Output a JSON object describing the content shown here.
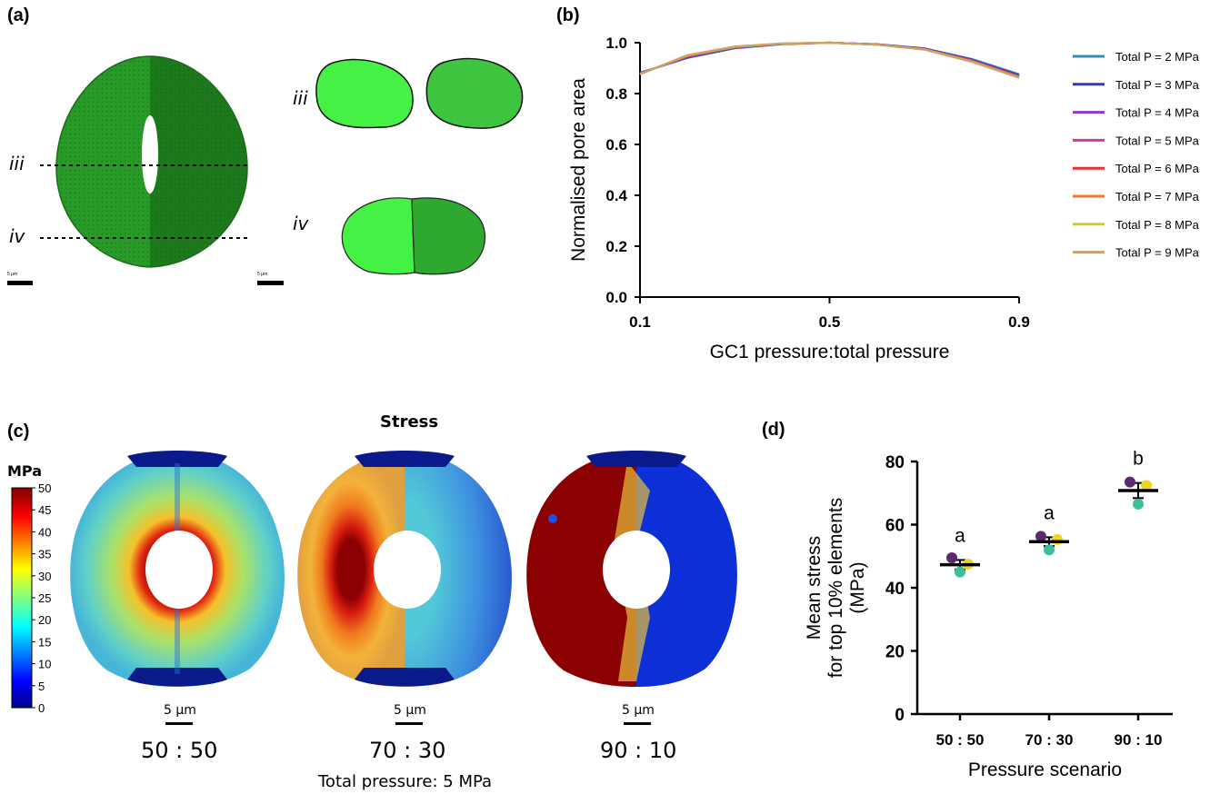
{
  "panel_a": {
    "label": "(a)",
    "line_iii": "iii",
    "line_iv": "iv",
    "scale_left": "5 μm",
    "scale_right": "5 μm",
    "colors": {
      "gc_light": "#3df23d",
      "gc_dark": "#1f8a1f",
      "gc_outline": "#1c6a1c"
    }
  },
  "panel_b": {
    "label": "(b)"
  },
  "panel_c": {
    "label": "(c)",
    "title": "Stress",
    "colorbar_unit": "MPa",
    "colorbar_ticks": [
      "50",
      "45",
      "40",
      "35",
      "30",
      "25",
      "20",
      "15",
      "10",
      "5",
      "0"
    ],
    "scale_text": "5 μm",
    "scenarios": [
      "50 : 50",
      "70 : 30",
      "90 : 10"
    ],
    "footnote": "Total pressure: 5 MPa"
  },
  "panel_d": {
    "label": "(d)"
  },
  "chart_data": [
    {
      "type": "line",
      "xlabel": "GC1 pressure:total pressure",
      "ylabel": "Normalised pore area",
      "xlim": [
        0.1,
        0.9
      ],
      "ylim": [
        0,
        1.0
      ],
      "xticks": [
        "0.1",
        "0.5",
        "0.9"
      ],
      "yticks": [
        "0.0",
        "0.2",
        "0.4",
        "0.6",
        "0.8",
        "1.0"
      ],
      "x": [
        0.1,
        0.2,
        0.3,
        0.4,
        0.5,
        0.6,
        0.7,
        0.8,
        0.9
      ],
      "legend_position": "right",
      "series": [
        {
          "name": "Total P = 2 MPa",
          "color": "#2e8fae",
          "values": [
            0.882,
            0.94,
            0.978,
            0.994,
            1.0,
            0.994,
            0.978,
            0.936,
            0.876
          ]
        },
        {
          "name": "Total P = 3 MPa",
          "color": "#2d3bbf",
          "values": [
            0.88,
            0.942,
            0.98,
            0.995,
            1.0,
            0.994,
            0.977,
            0.934,
            0.872
          ]
        },
        {
          "name": "Total P = 4 MPa",
          "color": "#8b3bc4",
          "values": [
            0.879,
            0.944,
            0.981,
            0.995,
            1.0,
            0.993,
            0.976,
            0.932,
            0.869
          ]
        },
        {
          "name": "Total P = 5 MPa",
          "color": "#d6398f",
          "values": [
            0.878,
            0.946,
            0.982,
            0.996,
            1.0,
            0.993,
            0.975,
            0.93,
            0.867
          ]
        },
        {
          "name": "Total P = 6 MPa",
          "color": "#e8302e",
          "values": [
            0.877,
            0.948,
            0.983,
            0.996,
            1.0,
            0.993,
            0.975,
            0.928,
            0.865
          ]
        },
        {
          "name": "Total P = 7 MPa",
          "color": "#f07a2a",
          "values": [
            0.877,
            0.949,
            0.984,
            0.996,
            1.0,
            0.992,
            0.974,
            0.927,
            0.864
          ]
        },
        {
          "name": "Total P = 8 MPa",
          "color": "#cfcc2c",
          "values": [
            0.876,
            0.95,
            0.984,
            0.997,
            1.0,
            0.992,
            0.974,
            0.926,
            0.863
          ]
        },
        {
          "name": "Total P = 9 MPa",
          "color": "#c8a36e",
          "values": [
            0.876,
            0.951,
            0.985,
            0.997,
            1.0,
            0.992,
            0.973,
            0.925,
            0.862
          ]
        }
      ]
    },
    {
      "type": "scatter",
      "xlabel": "Pressure scenario",
      "ylabel_lines": [
        "Mean stress",
        "for top 10% elements",
        "(MPa)"
      ],
      "categories": [
        "50 : 50",
        "70 : 30",
        "90 : 10"
      ],
      "ylim": [
        0,
        80
      ],
      "yticks": [
        "0",
        "20",
        "40",
        "60",
        "80"
      ],
      "means": [
        47.3,
        54.6,
        70.8
      ],
      "errors": [
        1.5,
        1.4,
        2.4
      ],
      "significance": [
        "a",
        "a",
        "b"
      ],
      "points": [
        {
          "color": "#5a2a6e",
          "values": [
            49.5,
            56.3,
            73.5
          ]
        },
        {
          "color": "#f2d41c",
          "values": [
            47.5,
            55.3,
            72.4
          ]
        },
        {
          "color": "#3dbf9a",
          "values": [
            45.0,
            52.0,
            66.5
          ]
        }
      ]
    }
  ]
}
